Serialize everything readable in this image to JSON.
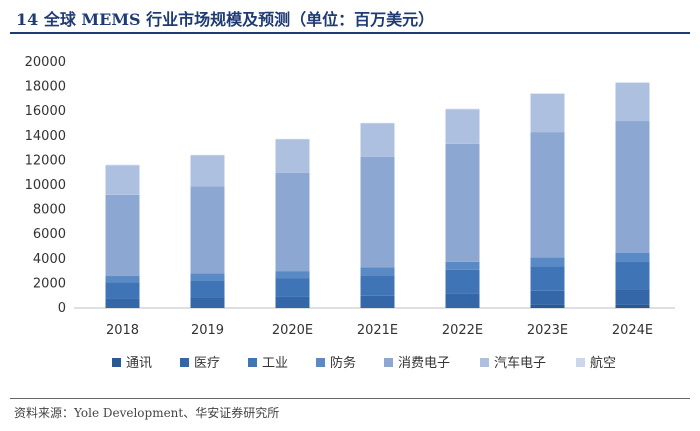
{
  "figure": {
    "title": "14 全球 MEMS 行业市场规模及预测（单位：百万美元）",
    "source": "资料来源：Yole Development、华安证券研究所"
  },
  "chart_data": {
    "type": "bar",
    "stacked": true,
    "categories": [
      "2018",
      "2019",
      "2020E",
      "2021E",
      "2022E",
      "2023E",
      "2024E"
    ],
    "series": [
      {
        "name": "通讯",
        "color": "#2a5a96",
        "values": [
          0,
          0,
          0,
          0,
          0,
          300,
          300
        ]
      },
      {
        "name": "医疗",
        "color": "#3467a8",
        "values": [
          800,
          850,
          900,
          1000,
          1200,
          1100,
          1200
        ]
      },
      {
        "name": "工业",
        "color": "#3f74b6",
        "values": [
          1300,
          1400,
          1500,
          1600,
          1900,
          2000,
          2300
        ]
      },
      {
        "name": "防务",
        "color": "#5a8ac6",
        "values": [
          500,
          550,
          600,
          700,
          650,
          700,
          700
        ]
      },
      {
        "name": "消费电子",
        "color": "#8ca7d2",
        "values": [
          6600,
          7100,
          8000,
          9000,
          9600,
          10200,
          10700
        ]
      },
      {
        "name": "汽车电子",
        "color": "#aec0e0",
        "values": [
          2400,
          2500,
          2700,
          2700,
          2800,
          3100,
          3100
        ]
      },
      {
        "name": "航空",
        "color": "#cdd7ec",
        "values": [
          50,
          50,
          50,
          50,
          50,
          50,
          50
        ]
      }
    ],
    "ylim": [
      0,
      20000
    ],
    "yticks": [
      0,
      2000,
      4000,
      6000,
      8000,
      10000,
      12000,
      14000,
      16000,
      18000,
      20000
    ],
    "legend_position": "bottom",
    "grid": false
  }
}
